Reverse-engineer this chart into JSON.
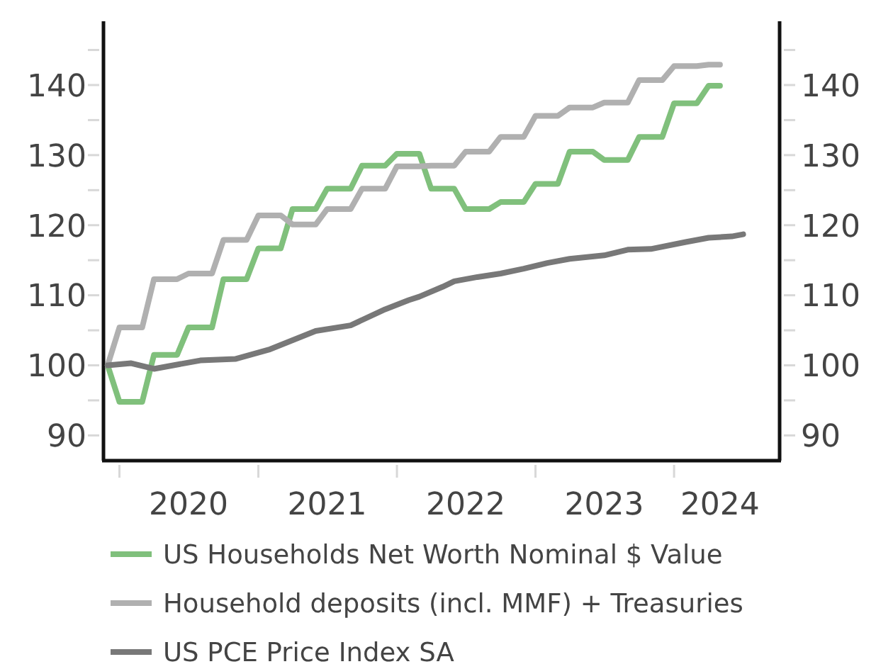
{
  "chart_data": {
    "type": "line",
    "ylim": [
      86.4,
      149.1
    ],
    "yticks": [
      {
        "value": 145,
        "label": null
      },
      140,
      {
        "value": 135,
        "label": null
      },
      130,
      {
        "value": 125,
        "label": null
      },
      120,
      {
        "value": 115,
        "label": null
      },
      110,
      {
        "value": 105,
        "label": null
      },
      100,
      {
        "value": 95,
        "label": null
      },
      90
    ],
    "y2lim": [
      86.4,
      149.1
    ],
    "y2ticks": [
      {
        "value": 145,
        "label": null
      },
      140,
      {
        "value": 135,
        "label": null
      },
      130,
      {
        "value": 125,
        "label": null
      },
      120,
      {
        "value": 115,
        "label": null
      },
      110,
      {
        "value": 105,
        "label": null
      },
      100,
      {
        "value": 95,
        "label": null
      },
      90
    ],
    "xlim": [
      "2019-11-20",
      "2024-10-05"
    ],
    "xticks": [
      {
        "value": "2020-01",
        "label": null
      },
      {
        "value": "2021-01",
        "label": null
      },
      {
        "value": "2022-01",
        "label": null
      },
      {
        "value": "2023-01",
        "label": null
      },
      {
        "value": "2024-01",
        "label": null
      },
      {
        "value": "2020-07",
        "label": "2020"
      },
      {
        "value": "2021-07",
        "label": "2021"
      },
      {
        "value": "2022-07",
        "label": "2022"
      },
      {
        "value": "2023-07",
        "label": "2023"
      },
      {
        "value": "2024-05",
        "label": "2024"
      }
    ],
    "legend": "bottom",
    "series": [
      {
        "name": "US Households Net Worth Nominal $ Value",
        "color": "#80c07c",
        "x": [
          "2019-12",
          "2020-01",
          "2020-03",
          "2020-04",
          "2020-06",
          "2020-07",
          "2020-09",
          "2020-10",
          "2020-12",
          "2021-01",
          "2021-03",
          "2021-04",
          "2021-06",
          "2021-07",
          "2021-09",
          "2021-10",
          "2021-12",
          "2022-01",
          "2022-03",
          "2022-04",
          "2022-06",
          "2022-07",
          "2022-09",
          "2022-10",
          "2022-12",
          "2023-01",
          "2023-03",
          "2023-04",
          "2023-06",
          "2023-07",
          "2023-09",
          "2023-10",
          "2023-12",
          "2024-01",
          "2024-03",
          "2024-04",
          "2024-05"
        ],
        "values": [
          100,
          94.8,
          94.8,
          101.5,
          101.5,
          105.4,
          105.4,
          112.3,
          112.3,
          116.7,
          116.7,
          122.3,
          122.3,
          125.2,
          125.2,
          128.5,
          128.5,
          130.2,
          130.2,
          125.2,
          125.2,
          122.3,
          122.3,
          123.3,
          123.3,
          125.9,
          125.9,
          130.5,
          130.5,
          129.3,
          129.3,
          132.6,
          132.6,
          137.4,
          137.4,
          139.9,
          139.9
        ]
      },
      {
        "name": "Household deposits (incl. MMF) + Treasuries",
        "color": "#b0b0b0",
        "x": [
          "2019-12",
          "2020-01",
          "2020-03",
          "2020-04",
          "2020-06",
          "2020-07",
          "2020-09",
          "2020-10",
          "2020-12",
          "2021-01",
          "2021-03",
          "2021-04",
          "2021-06",
          "2021-07",
          "2021-09",
          "2021-10",
          "2021-12",
          "2022-01",
          "2022-03",
          "2022-04",
          "2022-06",
          "2022-07",
          "2022-09",
          "2022-10",
          "2022-12",
          "2023-01",
          "2023-03",
          "2023-04",
          "2023-06",
          "2023-07",
          "2023-09",
          "2023-10",
          "2023-12",
          "2024-01",
          "2024-03",
          "2024-04",
          "2024-05"
        ],
        "values": [
          100,
          105.4,
          105.4,
          112.3,
          112.3,
          113.1,
          113.1,
          117.9,
          117.9,
          121.4,
          121.4,
          120.1,
          120.1,
          122.3,
          122.3,
          125.2,
          125.2,
          128.4,
          128.4,
          128.5,
          128.5,
          130.5,
          130.5,
          132.6,
          132.6,
          135.6,
          135.6,
          136.8,
          136.8,
          137.5,
          137.5,
          140.7,
          140.7,
          142.7,
          142.7,
          142.9,
          142.9
        ]
      },
      {
        "name": "US PCE Price Index SA",
        "color": "#787878",
        "x": [
          "2019-12",
          "2020-02",
          "2020-04",
          "2020-08",
          "2020-11",
          "2021-02",
          "2021-06",
          "2021-09",
          "2021-12",
          "2022-02",
          "2022-03",
          "2022-05",
          "2022-06",
          "2022-08",
          "2022-10",
          "2022-12",
          "2023-02",
          "2023-04",
          "2023-07",
          "2023-09",
          "2023-11",
          "2024-02",
          "2024-04",
          "2024-06",
          "2024-07"
        ],
        "values": [
          100,
          100.3,
          99.5,
          100.7,
          100.9,
          102.3,
          104.9,
          105.7,
          108.0,
          109.3,
          109.8,
          111.2,
          112.0,
          112.6,
          113.1,
          113.8,
          114.6,
          115.2,
          115.7,
          116.5,
          116.6,
          117.6,
          118.2,
          118.4,
          118.7
        ]
      }
    ]
  }
}
